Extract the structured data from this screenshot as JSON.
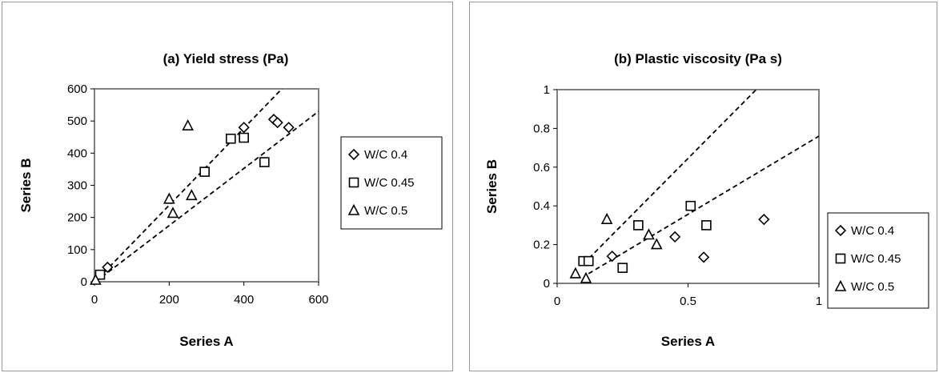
{
  "chart_data": [
    {
      "type": "scatter",
      "title": "(a) Yield stress (Pa)",
      "xlabel": "Series A",
      "ylabel": "Series B",
      "xlim": [
        0,
        600
      ],
      "ylim": [
        0,
        600
      ],
      "xticks": [
        "0",
        "200",
        "400",
        "600"
      ],
      "yticks": [
        "0",
        "100",
        "200",
        "300",
        "400",
        "500",
        "600"
      ],
      "grid": false,
      "legend_position": "right",
      "series": [
        {
          "name": "W/C 0.4",
          "marker": "diamond",
          "points": [
            [
              35,
              45
            ],
            [
              400,
              480
            ],
            [
              480,
              505
            ],
            [
              490,
              495
            ],
            [
              520,
              480
            ]
          ]
        },
        {
          "name": "W/C 0.45",
          "marker": "square",
          "points": [
            [
              15,
              22
            ],
            [
              295,
              342
            ],
            [
              365,
              445
            ],
            [
              400,
              448
            ],
            [
              455,
              372
            ]
          ]
        },
        {
          "name": "W/C 0.5",
          "marker": "triangle",
          "points": [
            [
              3,
              5
            ],
            [
              200,
              257
            ],
            [
              210,
              213
            ],
            [
              250,
              485
            ],
            [
              260,
              268
            ]
          ]
        }
      ],
      "trendlines": [
        {
          "from": [
            10,
            10
          ],
          "to": [
            510,
            610
          ]
        },
        {
          "from": [
            20,
            15
          ],
          "to": [
            600,
            530
          ]
        }
      ]
    },
    {
      "type": "scatter",
      "title": "(b) Plastic viscosity (Pa s)",
      "xlabel": "Series A",
      "ylabel": "Series B",
      "xlim": [
        0,
        1
      ],
      "ylim": [
        0,
        1
      ],
      "xticks": [
        "0",
        "0.5",
        "1"
      ],
      "yticks": [
        "0",
        "0.2",
        "0.4",
        "0.6",
        "0.8",
        "1"
      ],
      "grid": false,
      "legend_position": "right",
      "series": [
        {
          "name": "W/C 0.4",
          "marker": "diamond",
          "points": [
            [
              0.21,
              0.14
            ],
            [
              0.45,
              0.24
            ],
            [
              0.56,
              0.135
            ],
            [
              0.79,
              0.33
            ]
          ]
        },
        {
          "name": "W/C 0.45",
          "marker": "square",
          "points": [
            [
              0.1,
              0.115
            ],
            [
              0.12,
              0.115
            ],
            [
              0.25,
              0.08
            ],
            [
              0.31,
              0.3
            ],
            [
              0.51,
              0.4
            ],
            [
              0.57,
              0.3
            ]
          ]
        },
        {
          "name": "W/C 0.5",
          "marker": "triangle",
          "points": [
            [
              0.07,
              0.05
            ],
            [
              0.11,
              0.025
            ],
            [
              0.19,
              0.33
            ],
            [
              0.35,
              0.25
            ],
            [
              0.38,
              0.2
            ]
          ]
        }
      ],
      "trendlines": [
        {
          "from": [
            0.1,
            0.1
          ],
          "to": [
            0.775,
            1.02
          ]
        },
        {
          "from": [
            0.12,
            0.05
          ],
          "to": [
            1,
            0.76
          ]
        }
      ]
    }
  ]
}
